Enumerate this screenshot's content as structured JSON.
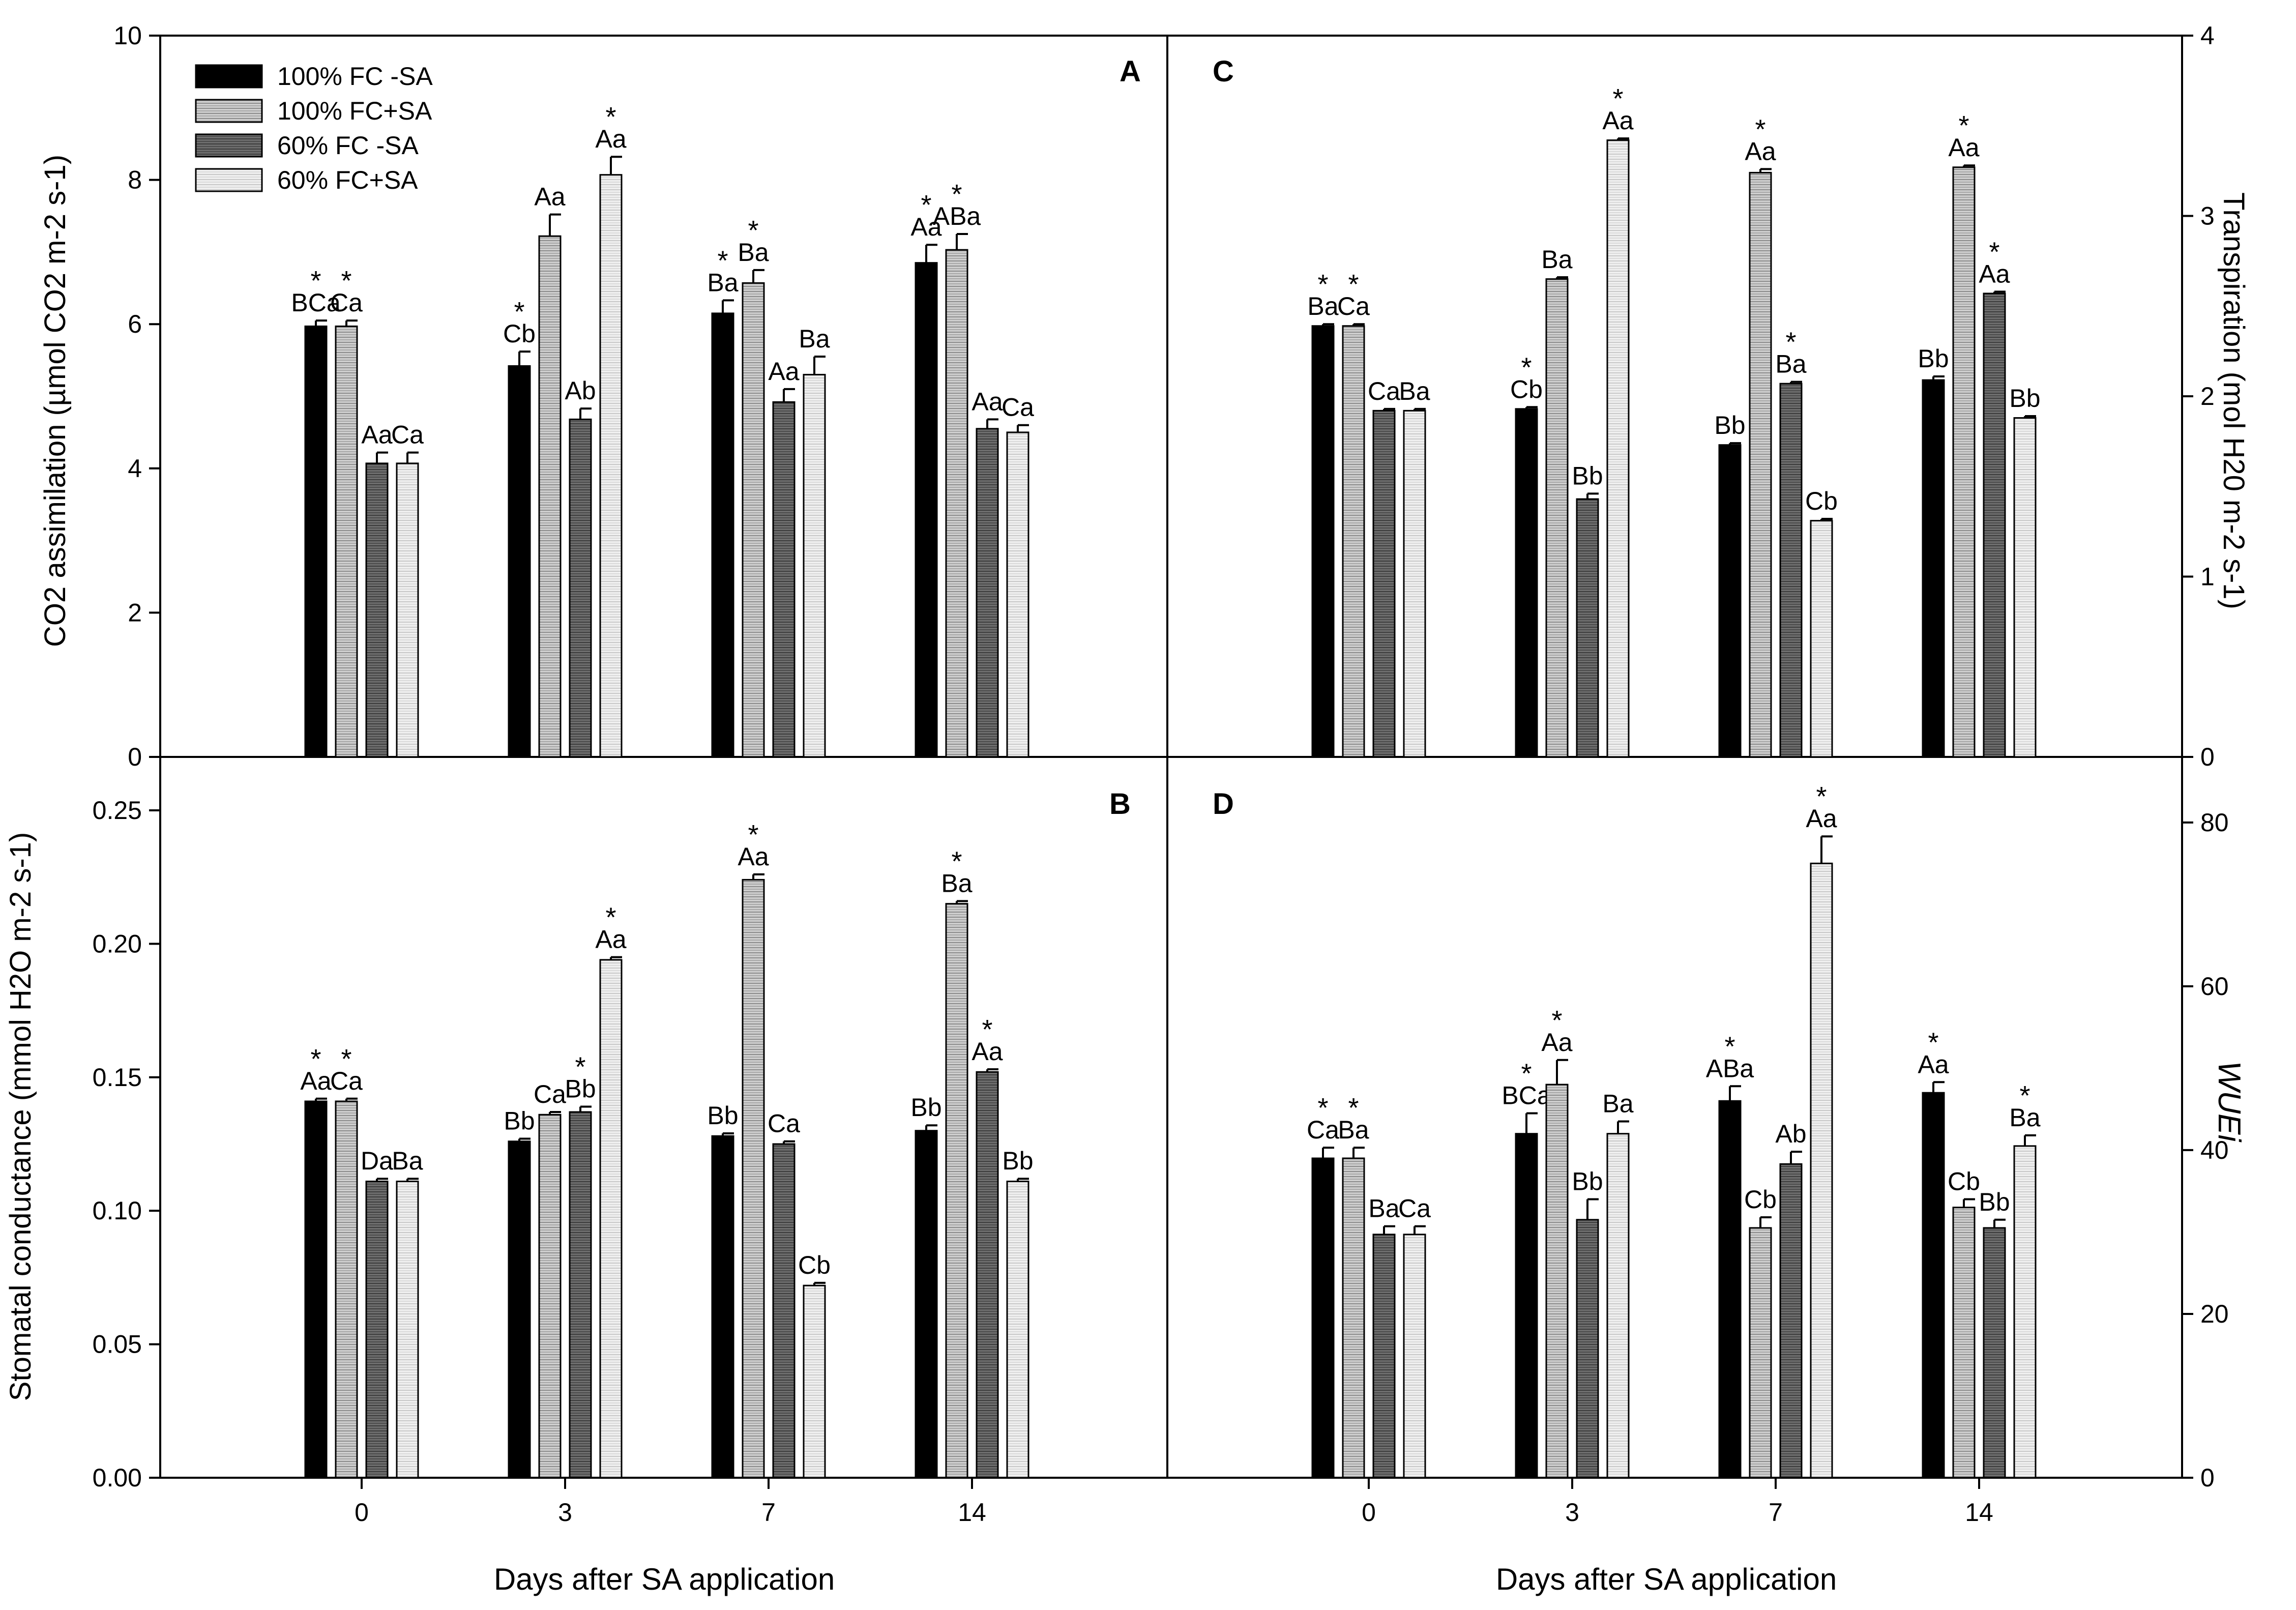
{
  "legend": {
    "position": "top-left",
    "entries": [
      {
        "label": "100% FC -SA",
        "color": "#000000",
        "pattern": "solid"
      },
      {
        "label": "100% FC+SA",
        "color": "#bfbfbf",
        "pattern": "hatched-light"
      },
      {
        "label": "60% FC -SA",
        "color": "#5a5a5a",
        "pattern": "hatched-dark"
      },
      {
        "label": "60% FC+SA",
        "color": "#e6e6e6",
        "pattern": "hatched-pale"
      }
    ]
  },
  "chart_data": [
    {
      "panel": "A",
      "type": "bar",
      "xlabel": "",
      "ylabel": "CO2 assimilation (µmol CO2 m-2 s-1)",
      "y_axis_side": "left",
      "ylim": [
        0,
        10
      ],
      "yticks": [
        "0",
        "2",
        "4",
        "6",
        "8",
        "10"
      ],
      "categories": [
        "0",
        "3",
        "7",
        "14"
      ],
      "series": [
        {
          "name": "100% FC -SA",
          "values": [
            5.97,
            5.42,
            6.15,
            6.85
          ],
          "errors": [
            0.08,
            0.2,
            0.18,
            0.25
          ],
          "labels": [
            "BCa",
            "Cb",
            "Ba",
            "Aa"
          ],
          "stars": [
            true,
            true,
            true,
            true
          ]
        },
        {
          "name": "100% FC+SA",
          "values": [
            5.97,
            7.22,
            6.57,
            7.03
          ],
          "errors": [
            0.08,
            0.3,
            0.18,
            0.22
          ],
          "labels": [
            "Ca",
            "Aa",
            "Ba",
            "ABa"
          ],
          "stars": [
            true,
            false,
            true,
            true
          ]
        },
        {
          "name": "60% FC -SA",
          "values": [
            4.07,
            4.68,
            4.92,
            4.55
          ],
          "errors": [
            0.15,
            0.15,
            0.18,
            0.13
          ],
          "labels": [
            "Aa",
            "Ab",
            "Aa",
            "Aa"
          ],
          "stars": [
            false,
            false,
            false,
            false
          ]
        },
        {
          "name": "60% FC+SA",
          "values": [
            4.07,
            8.07,
            5.3,
            4.5
          ],
          "errors": [
            0.15,
            0.25,
            0.25,
            0.1
          ],
          "labels": [
            "Ca",
            "Aa",
            "Ba",
            "Ca"
          ],
          "stars": [
            false,
            true,
            false,
            false
          ]
        }
      ]
    },
    {
      "panel": "B",
      "type": "bar",
      "xlabel": "Days after SA application",
      "ylabel": "Stomatal conductance (mmol H2O m-2 s-1)",
      "y_axis_side": "left",
      "ylim": [
        0,
        0.27
      ],
      "yticks": [
        "0.00",
        "0.05",
        "0.10",
        "0.15",
        "0.20",
        "0.25"
      ],
      "categories": [
        "0",
        "3",
        "7",
        "14"
      ],
      "series": [
        {
          "name": "100% FC -SA",
          "values": [
            0.141,
            0.126,
            0.128,
            0.13
          ],
          "errors": [
            0.001,
            0.001,
            0.001,
            0.002
          ],
          "labels": [
            "Aa",
            "Bb",
            "Bb",
            "Bb"
          ],
          "stars": [
            true,
            false,
            false,
            false
          ]
        },
        {
          "name": "100% FC+SA",
          "values": [
            0.141,
            0.136,
            0.224,
            0.215
          ],
          "errors": [
            0.001,
            0.001,
            0.002,
            0.001
          ],
          "labels": [
            "Ca",
            "Ca",
            "Aa",
            "Ba"
          ],
          "stars": [
            true,
            false,
            true,
            true
          ]
        },
        {
          "name": "60% FC -SA",
          "values": [
            0.111,
            0.137,
            0.125,
            0.152
          ],
          "errors": [
            0.001,
            0.002,
            0.001,
            0.001
          ],
          "labels": [
            "Da",
            "Bb",
            "Ca",
            "Aa"
          ],
          "stars": [
            false,
            true,
            false,
            true
          ]
        },
        {
          "name": "60% FC+SA",
          "values": [
            0.111,
            0.194,
            0.072,
            0.111
          ],
          "errors": [
            0.001,
            0.001,
            0.001,
            0.001
          ],
          "labels": [
            "Ba",
            "Aa",
            "Cb",
            "Bb"
          ],
          "stars": [
            false,
            true,
            false,
            false
          ]
        }
      ]
    },
    {
      "panel": "C",
      "type": "bar",
      "xlabel": "",
      "ylabel": "Transpiration (mol H20 m-2 s-1)",
      "y_axis_side": "right",
      "ylim": [
        0,
        4
      ],
      "yticks": [
        "0",
        "1",
        "2",
        "3",
        "4"
      ],
      "categories": [
        "0",
        "3",
        "7",
        "14"
      ],
      "series": [
        {
          "name": "100% FC -SA",
          "values": [
            2.39,
            1.93,
            1.73,
            2.09
          ],
          "errors": [
            0.01,
            0.01,
            0.01,
            0.02
          ],
          "labels": [
            "Ba",
            "Cb",
            "Bb",
            "Bb"
          ],
          "stars": [
            true,
            true,
            false,
            false
          ]
        },
        {
          "name": "100% FC+SA",
          "values": [
            2.39,
            2.65,
            3.24,
            3.27
          ],
          "errors": [
            0.01,
            0.01,
            0.02,
            0.01
          ],
          "labels": [
            "Ca",
            "Ba",
            "Aa",
            "Aa"
          ],
          "stars": [
            true,
            false,
            true,
            true
          ]
        },
        {
          "name": "60% FC -SA",
          "values": [
            1.92,
            1.43,
            2.07,
            2.57
          ],
          "errors": [
            0.01,
            0.03,
            0.01,
            0.01
          ],
          "labels": [
            "Ca",
            "Bb",
            "Ba",
            "Aa"
          ],
          "stars": [
            false,
            false,
            true,
            true
          ]
        },
        {
          "name": "60% FC+SA",
          "values": [
            1.92,
            3.42,
            1.31,
            1.88
          ],
          "errors": [
            0.01,
            0.01,
            0.01,
            0.01
          ],
          "labels": [
            "Ba",
            "Aa",
            "Cb",
            "Bb"
          ],
          "stars": [
            false,
            true,
            false,
            false
          ]
        }
      ]
    },
    {
      "panel": "D",
      "type": "bar",
      "xlabel": "Days after SA application",
      "ylabel": "WUEi",
      "y_axis_side": "right",
      "ylim": [
        0,
        88
      ],
      "yticks": [
        "0",
        "20",
        "40",
        "60",
        "80"
      ],
      "categories": [
        "0",
        "3",
        "7",
        "14"
      ],
      "series": [
        {
          "name": "100% FC -SA",
          "values": [
            39,
            42,
            46,
            47
          ],
          "errors": [
            1.3,
            2.5,
            1.8,
            1.3
          ],
          "labels": [
            "Ca",
            "BCa",
            "ABa",
            "Aa"
          ],
          "stars": [
            true,
            true,
            true,
            true
          ]
        },
        {
          "name": "100% FC+SA",
          "values": [
            39,
            48,
            30.5,
            33
          ],
          "errors": [
            1.3,
            3.0,
            1.3,
            1.0
          ],
          "labels": [
            "Ba",
            "Aa",
            "Cb",
            "Cb"
          ],
          "stars": [
            true,
            true,
            false,
            false
          ]
        },
        {
          "name": "60% FC -SA",
          "values": [
            29.7,
            31.5,
            38.3,
            30.5
          ],
          "errors": [
            1.0,
            2.5,
            1.5,
            1.0
          ],
          "labels": [
            "Ba",
            "Bb",
            "Ab",
            "Bb"
          ],
          "stars": [
            false,
            false,
            false,
            false
          ]
        },
        {
          "name": "60% FC+SA",
          "values": [
            29.7,
            42,
            75,
            40.5
          ],
          "errors": [
            1.0,
            1.5,
            3.3,
            1.3
          ],
          "labels": [
            "Ca",
            "Ba",
            "Aa",
            "Ba"
          ],
          "stars": [
            false,
            false,
            true,
            true
          ]
        }
      ]
    }
  ]
}
